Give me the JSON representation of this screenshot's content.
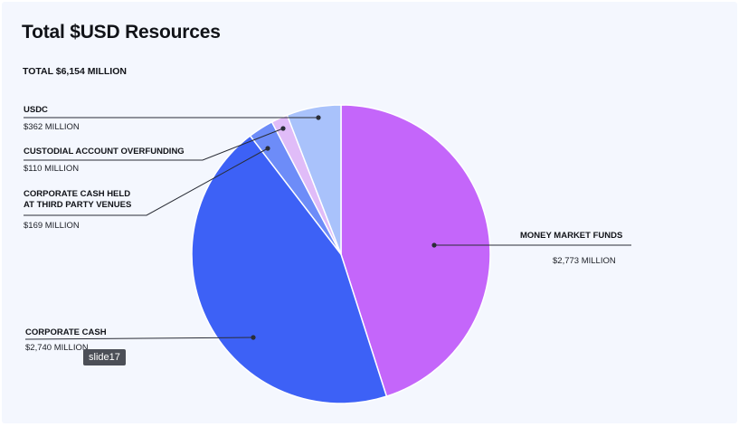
{
  "title": "Total $USD Resources",
  "total": "TOTAL $6,154 MILLION",
  "tooltip": "slide17",
  "chart_data": {
    "type": "pie",
    "title": "Total $USD Resources",
    "subtitle": "TOTAL $6,154 MILLION",
    "unit": "$ MILLION",
    "slices": [
      {
        "label": "MONEY MARKET FUNDS",
        "value": 2773,
        "value_label": "$2,773 MILLION",
        "color": "#c466fa"
      },
      {
        "label": "CORPORATE CASH",
        "value": 2740,
        "value_label": "$2,740 MILLION",
        "color": "#3d61f6"
      },
      {
        "label": "CORPORATE CASH HELD AT THIRD PARTY VENUES",
        "label_lines": [
          "CORPORATE CASH HELD",
          "AT THIRD PARTY VENUES"
        ],
        "value": 169,
        "value_label": "$169 MILLION",
        "color": "#6d8cf8"
      },
      {
        "label": "CUSTODIAL ACCOUNT OVERFUNDING",
        "value": 110,
        "value_label": "$110 MILLION",
        "color": "#e0bcf8"
      },
      {
        "label": "USDC",
        "value": 362,
        "value_label": "$362 MILLION",
        "color": "#a9c2fb"
      }
    ]
  }
}
